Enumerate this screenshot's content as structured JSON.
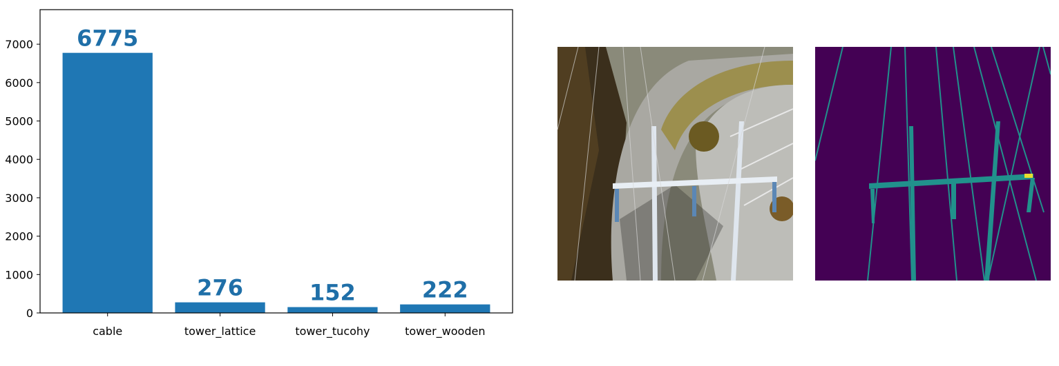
{
  "chart_data": {
    "type": "bar",
    "categories": [
      "cable",
      "tower_lattice",
      "tower_tucohy",
      "tower_wooden"
    ],
    "values": [
      6775,
      276,
      152,
      222
    ],
    "value_labels": [
      "6775",
      "276",
      "152",
      "222"
    ],
    "title": "",
    "xlabel": "",
    "ylabel": "",
    "ylim": [
      0,
      7900
    ],
    "yticks": [
      0,
      1000,
      2000,
      3000,
      4000,
      5000,
      6000,
      7000
    ],
    "ytick_labels": [
      "0",
      "1000",
      "2000",
      "3000",
      "4000",
      "5000",
      "6000",
      "7000"
    ],
    "grid": false,
    "colors": {
      "bar": "#1f77b4",
      "label": "#1f6fa8",
      "frame": "#000000"
    }
  },
  "images": {
    "aerial": {
      "icon": "aerial-powerline-photo-icon"
    },
    "mask": {
      "icon": "segmentation-mask-icon",
      "colors": {
        "background": "#440154",
        "lines": "#21918c",
        "highlight": "#fde725"
      }
    }
  }
}
